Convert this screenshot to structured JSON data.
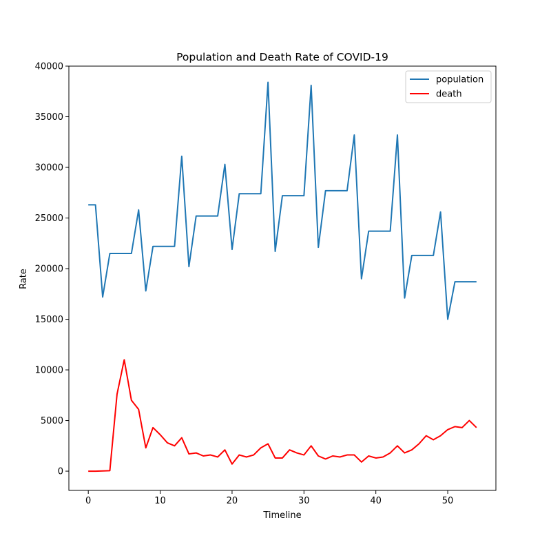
{
  "chart_data": {
    "type": "line",
    "title": "Population and Death Rate of COVID-19",
    "xlabel": "Timeline",
    "ylabel": "Rate",
    "xlim": [
      -2.7,
      56.7
    ],
    "ylim": [
      -1900,
      40000
    ],
    "x_ticks": [
      0,
      10,
      20,
      30,
      40,
      50
    ],
    "y_ticks": [
      0,
      5000,
      10000,
      15000,
      20000,
      25000,
      30000,
      35000,
      40000
    ],
    "grid": false,
    "legend_position": "top-right",
    "x": [
      0,
      1,
      2,
      3,
      4,
      5,
      6,
      7,
      8,
      9,
      10,
      11,
      12,
      13,
      14,
      15,
      16,
      17,
      18,
      19,
      20,
      21,
      22,
      23,
      24,
      25,
      26,
      27,
      28,
      29,
      30,
      31,
      32,
      33,
      34,
      35,
      36,
      37,
      38,
      39,
      40,
      41,
      42,
      43,
      44,
      45,
      46,
      47,
      48,
      49,
      50,
      51,
      52,
      53,
      54
    ],
    "series": [
      {
        "name": "population",
        "color": "#1f77b4",
        "values": [
          26300,
          26300,
          17200,
          21500,
          21500,
          21500,
          21500,
          25800,
          17800,
          22200,
          22200,
          22200,
          22200,
          31100,
          20200,
          25200,
          25200,
          25200,
          25200,
          30300,
          21900,
          27400,
          27400,
          27400,
          27400,
          38400,
          21700,
          27200,
          27200,
          27200,
          27200,
          38100,
          22100,
          27700,
          27700,
          27700,
          27700,
          33200,
          19000,
          23700,
          23700,
          23700,
          23700,
          33200,
          17100,
          21300,
          21300,
          21300,
          21300,
          25600,
          15000,
          18700,
          18700,
          18700,
          18700
        ]
      },
      {
        "name": "death",
        "color": "#ff0000",
        "values": [
          0,
          0,
          20,
          50,
          7600,
          11000,
          7000,
          6100,
          2300,
          4300,
          3600,
          2800,
          2500,
          3300,
          1700,
          1800,
          1500,
          1600,
          1400,
          2100,
          700,
          1600,
          1400,
          1600,
          2300,
          2700,
          1300,
          1300,
          2100,
          1800,
          1600,
          2500,
          1500,
          1200,
          1500,
          1400,
          1600,
          1600,
          900,
          1500,
          1300,
          1400,
          1800,
          2500,
          1800,
          2100,
          2700,
          3500,
          3100,
          3500,
          4100,
          4400,
          4300,
          5000,
          4300
        ]
      }
    ]
  }
}
